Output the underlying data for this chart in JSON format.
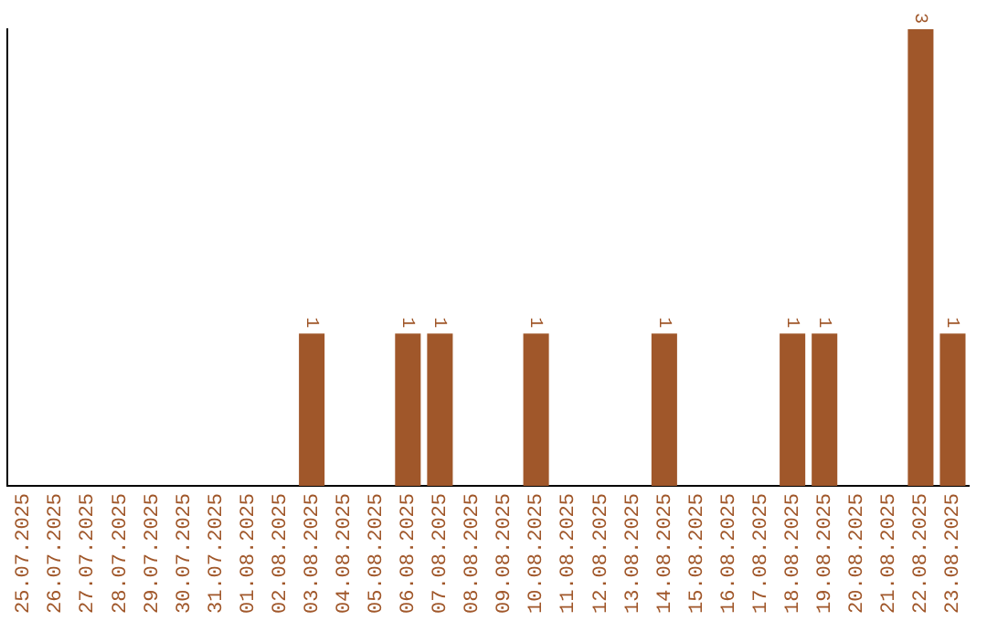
{
  "chart_data": {
    "type": "bar",
    "categories": [
      "25.07.2025",
      "26.07.2025",
      "27.07.2025",
      "28.07.2025",
      "29.07.2025",
      "30.07.2025",
      "31.07.2025",
      "01.08.2025",
      "02.08.2025",
      "03.08.2025",
      "04.08.2025",
      "05.08.2025",
      "06.08.2025",
      "07.08.2025",
      "08.08.2025",
      "09.08.2025",
      "10.08.2025",
      "11.08.2025",
      "12.08.2025",
      "13.08.2025",
      "14.08.2025",
      "15.08.2025",
      "16.08.2025",
      "17.08.2025",
      "18.08.2025",
      "19.08.2025",
      "20.08.2025",
      "21.08.2025",
      "22.08.2025",
      "23.08.2025"
    ],
    "values": [
      0,
      0,
      0,
      0,
      0,
      0,
      0,
      0,
      0,
      1,
      0,
      0,
      1,
      1,
      0,
      0,
      1,
      0,
      0,
      0,
      1,
      0,
      0,
      0,
      1,
      1,
      0,
      0,
      3,
      1
    ],
    "value_labels": [
      null,
      null,
      null,
      null,
      null,
      null,
      null,
      null,
      null,
      "1",
      null,
      null,
      "1",
      "1",
      null,
      null,
      "1",
      null,
      null,
      null,
      "1",
      null,
      null,
      null,
      "1",
      "1",
      null,
      null,
      "3",
      "1"
    ],
    "color": "#a0572a",
    "grid": false,
    "legend": false,
    "tick_labels": "x"
  }
}
